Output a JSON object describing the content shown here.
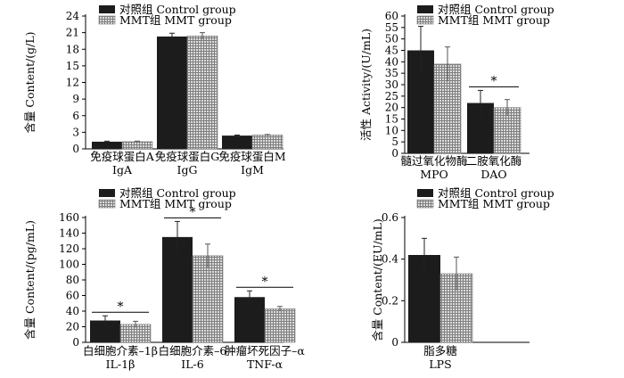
{
  "chart_data": [
    {
      "type": "bar",
      "panel": "immunoglobulin",
      "ylabel": "含量 Content/(g/L)",
      "ylim": [
        0,
        24
      ],
      "yticks": [
        "0",
        "3",
        "6",
        "9",
        "12",
        "15",
        "18",
        "21",
        "24"
      ],
      "categories": [
        "免疫球蛋白A",
        "免疫球蛋白G",
        "免疫球蛋白M"
      ],
      "categories_en": [
        "IgA",
        "IgG",
        "IgM"
      ],
      "series": [
        {
          "name": "对照组 Control group",
          "values": [
            1.3,
            20.3,
            2.4
          ],
          "errors": [
            0.1,
            0.6,
            0.1
          ]
        },
        {
          "name": "MMT组 MMT group",
          "values": [
            1.3,
            20.4,
            2.5
          ],
          "errors": [
            0.1,
            0.6,
            0.1
          ]
        }
      ],
      "significance": []
    },
    {
      "type": "bar",
      "panel": "enzymes",
      "ylabel": "活性 Activity/(U/mL)",
      "ylim": [
        0,
        60
      ],
      "yticks": [
        "0",
        "5",
        "10",
        "15",
        "20",
        "25",
        "30",
        "35",
        "40",
        "45",
        "50",
        "55",
        "60"
      ],
      "categories": [
        "髓过氧化物酶",
        "二胺氧化酶"
      ],
      "categories_en": [
        "MPO",
        "DAO"
      ],
      "series": [
        {
          "name": "对照组 Control group",
          "values": [
            45,
            22
          ],
          "errors": [
            10.5,
            5.5
          ]
        },
        {
          "name": "MMT组 MMT group",
          "values": [
            39,
            20
          ],
          "errors": [
            7.5,
            3.5
          ]
        }
      ],
      "significance": [
        {
          "category": 1,
          "label": "*"
        }
      ]
    },
    {
      "type": "bar",
      "panel": "cytokines",
      "ylabel": "含量 Content/(pg/mL)",
      "ylim": [
        0,
        160
      ],
      "yticks": [
        "0",
        "20",
        "40",
        "60",
        "80",
        "100",
        "120",
        "140",
        "160"
      ],
      "categories": [
        "白细胞介素–1β",
        "白细胞介素–6",
        "肿瘤坏死因子–α"
      ],
      "categories_en": [
        "IL-1β",
        "IL-6",
        "TNF-α"
      ],
      "series": [
        {
          "name": "对照组 Control group",
          "values": [
            28,
            135,
            58
          ],
          "errors": [
            6,
            20,
            8
          ]
        },
        {
          "name": "MMT组 MMT group",
          "values": [
            23,
            111,
            43
          ],
          "errors": [
            4,
            15,
            3
          ]
        }
      ],
      "significance": [
        {
          "category": 0,
          "label": "*"
        },
        {
          "category": 1,
          "label": "*"
        },
        {
          "category": 2,
          "label": "*"
        }
      ]
    },
    {
      "type": "bar",
      "panel": "lps",
      "ylabel": "含量 Content/(EU/mL)",
      "ylim": [
        0,
        0.6
      ],
      "yticks": [
        "0",
        "0.2",
        "0.4",
        "0.6"
      ],
      "categories": [
        "脂多糖"
      ],
      "categories_en": [
        "LPS"
      ],
      "series": [
        {
          "name": "对照组 Control group",
          "values": [
            0.42
          ],
          "errors": [
            0.08
          ]
        },
        {
          "name": "MMT组 MMT group",
          "values": [
            0.33
          ],
          "errors": [
            0.08
          ]
        }
      ],
      "significance": []
    }
  ],
  "colors": {
    "control": "#1c1c1c",
    "mmt": "#9a9a9a",
    "axis": "#000000"
  }
}
